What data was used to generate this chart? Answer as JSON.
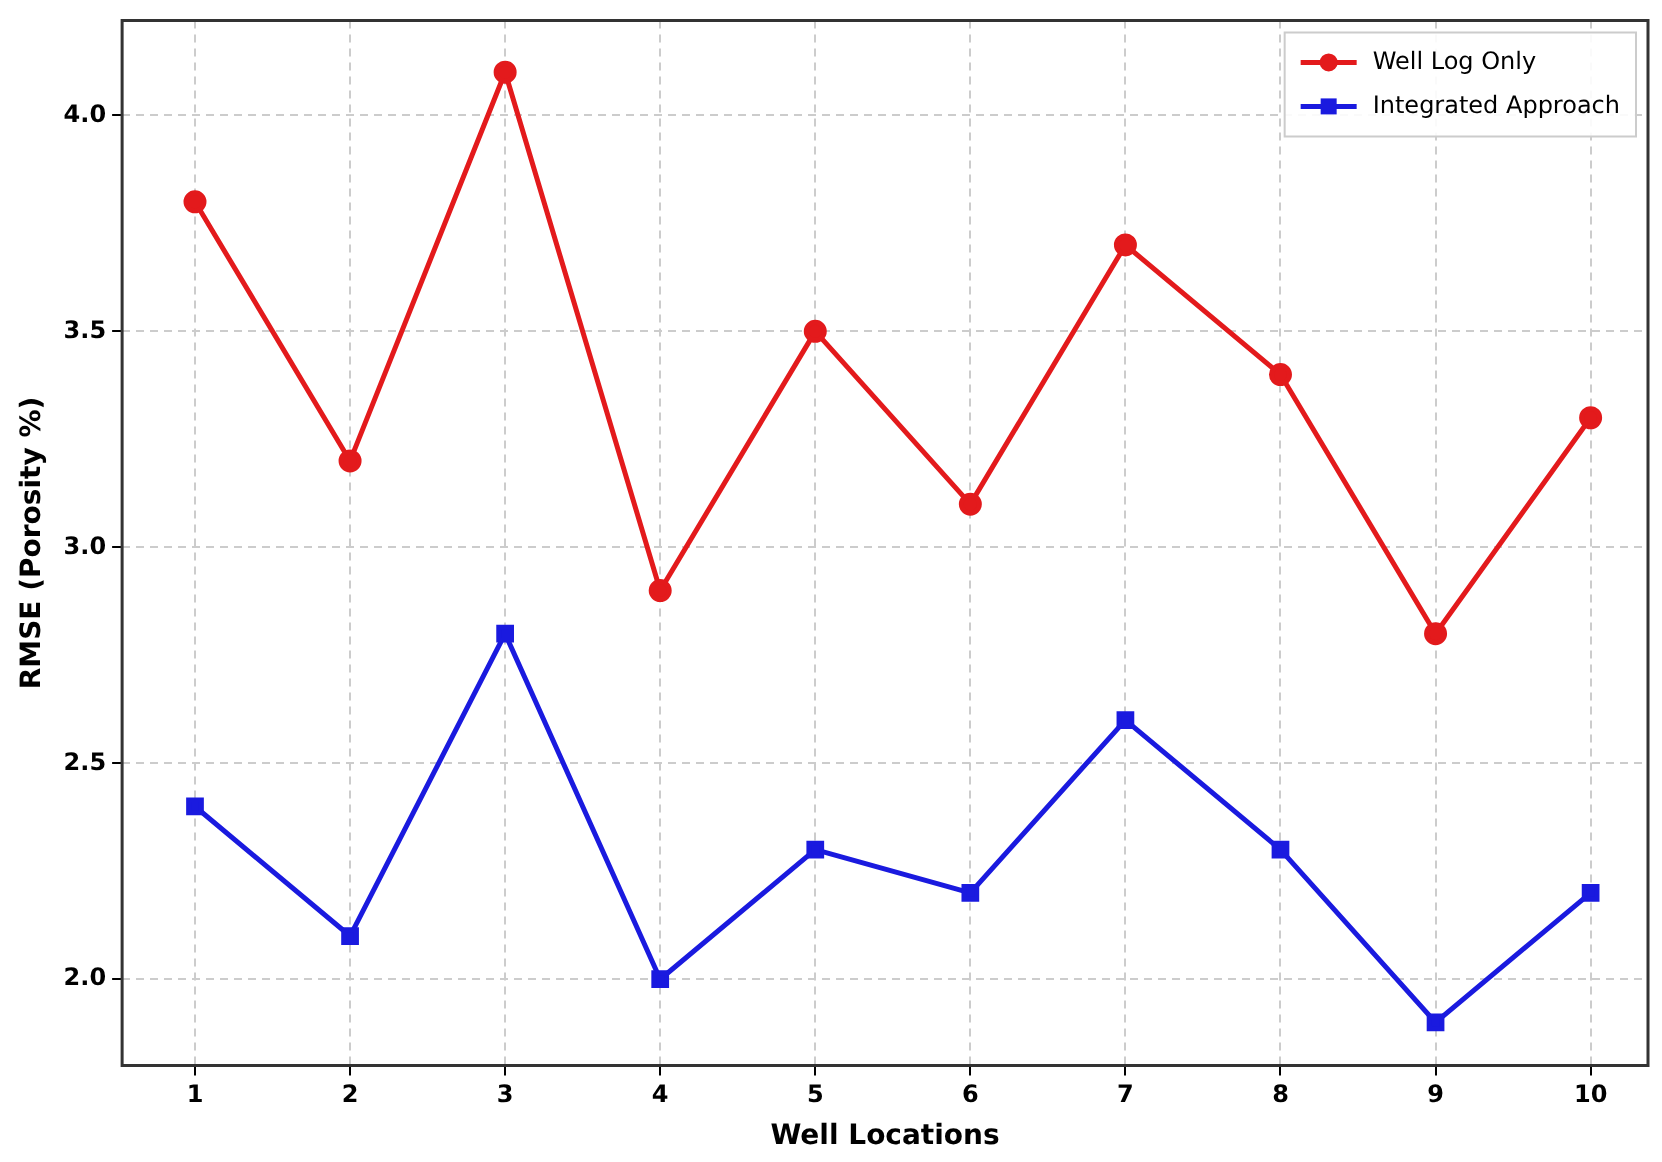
{
  "chart_data": {
    "type": "line",
    "xlabel": "Well Locations",
    "ylabel": "RMSE (Porosity %)",
    "x": [
      1,
      2,
      3,
      4,
      5,
      6,
      7,
      8,
      9,
      10
    ],
    "series": [
      {
        "name": "Well Log Only",
        "color": "#e31a1c",
        "marker": "circle",
        "values": [
          3.8,
          3.2,
          4.1,
          2.9,
          3.5,
          3.1,
          3.7,
          3.4,
          2.8,
          3.3
        ]
      },
      {
        "name": "Integrated Approach",
        "color": "#1a1adf",
        "marker": "square",
        "values": [
          2.4,
          2.1,
          2.8,
          2.0,
          2.3,
          2.2,
          2.6,
          2.3,
          1.9,
          2.2
        ]
      }
    ],
    "xlim": [
      0.53,
      10.37
    ],
    "xticks": [
      1,
      2,
      3,
      4,
      5,
      6,
      7,
      8,
      9,
      10
    ],
    "ylim": [
      1.8,
      4.22
    ],
    "yticks": [
      {
        "value": 2,
        "label": "2.0"
      },
      {
        "value": 2.5,
        "label": "2.5"
      },
      {
        "value": 3,
        "label": "3.0"
      },
      {
        "value": 3.5,
        "label": "3.5"
      },
      {
        "value": 4,
        "label": "4.0"
      }
    ],
    "grid": true,
    "legend": "top right",
    "line_style": "solid"
  }
}
